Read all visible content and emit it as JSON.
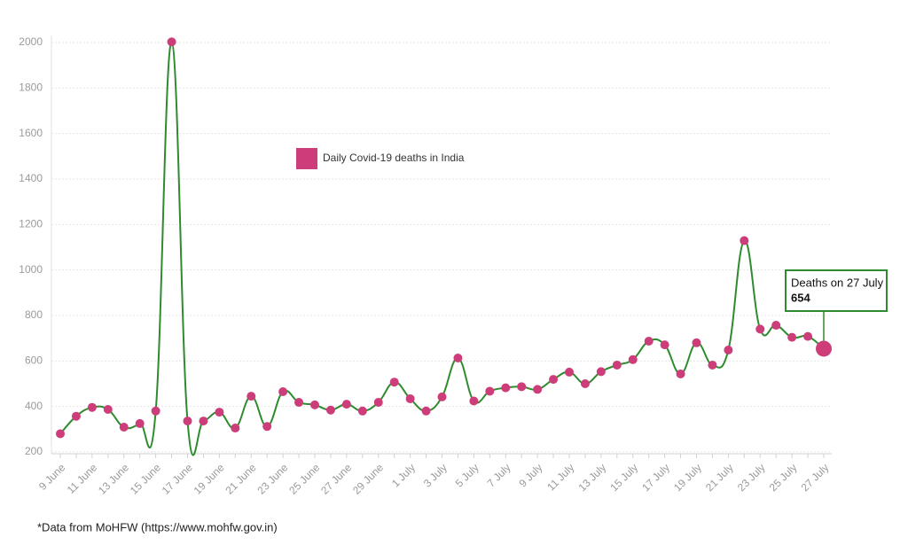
{
  "chart_data": {
    "type": "line",
    "categories": [
      "9 June",
      null,
      "11 June",
      null,
      "13 June",
      null,
      "15 June",
      null,
      "17 June",
      null,
      "19 June",
      null,
      "21 June",
      null,
      "23 June",
      null,
      "25 June",
      null,
      "27 June",
      null,
      "29 June",
      null,
      "1 July",
      null,
      "3 July",
      null,
      "5 July",
      null,
      "7 July",
      null,
      "9 July",
      null,
      "11 July",
      null,
      "13 July",
      null,
      "15 July",
      null,
      "17 July",
      null,
      "19 July",
      null,
      "21 July",
      null,
      "23 July",
      null,
      "25 July",
      null,
      "27 July"
    ],
    "series": [
      {
        "name": "Daily Covid-19 deaths in India",
        "color": "#2e8b2e",
        "marker_color": "#cc3d7a",
        "values": [
          280,
          357,
          396,
          387,
          309,
          325,
          380,
          2003,
          336,
          336,
          375,
          305,
          445,
          312,
          465,
          418,
          407,
          384,
          410,
          380,
          418,
          507,
          434,
          380,
          442,
          613,
          424,
          467,
          482,
          487,
          475,
          519,
          551,
          500,
          553,
          582,
          606,
          687,
          671,
          543,
          680,
          582,
          648,
          1129,
          740,
          757,
          704,
          708,
          654
        ]
      }
    ],
    "ylim": [
      200,
      2000
    ],
    "yticks": [
      200,
      400,
      600,
      800,
      1000,
      1200,
      1400,
      1600,
      1800,
      2000
    ],
    "grid": true,
    "tooltip": {
      "title": "Deaths on 27 July"
    },
    "footnote": "*Data from MoHFW (https://www.mohfw.gov.in)"
  }
}
